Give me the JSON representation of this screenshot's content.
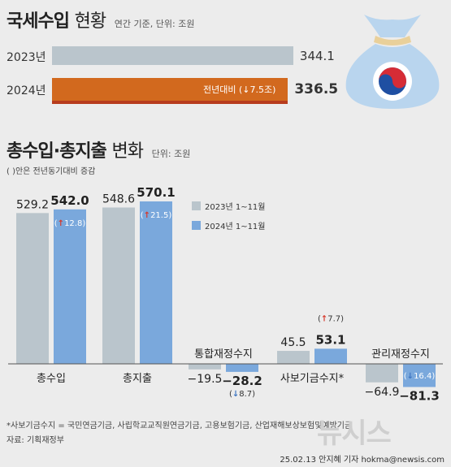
{
  "colors": {
    "bg": "#ececec",
    "bar2023": "#bac5cc",
    "bar2024_horizontal": "#d2691e",
    "bar2024_horizontal_base": "#b73c1d",
    "bar2024": "#7aa8dc",
    "up_arrow": "#d63a2d",
    "down_arrow": "#3f76c2",
    "bag": "#b9d5ee",
    "bag_tie": "#e9d09a",
    "emblem_red": "#d62c36",
    "emblem_blue": "#1f4fa2"
  },
  "section1": {
    "title_bold": "국세수입",
    "title_normal": "현황",
    "unit": "연간 기준, 단위: 조원"
  },
  "section2": {
    "title_bold": "총수입·총지출",
    "title_normal": "변화",
    "unit": "단위: 조원",
    "note": "( )안은 전년동기대비 증감",
    "legend": [
      "2023년 1~11월",
      "2024년 1~11월"
    ]
  },
  "chart_data": [
    {
      "type": "bar",
      "orientation": "horizontal",
      "categories": [
        "2023년",
        "2024년"
      ],
      "values": [
        344.1,
        336.5
      ],
      "value_labels": [
        "344.1",
        "336.5"
      ],
      "annotation": "전년대비 (↓7.5조)",
      "xlim": [
        0,
        350
      ]
    },
    {
      "type": "bar",
      "categories": [
        "총수입",
        "총지출",
        "통합재정수지",
        "사보기금수지*",
        "관리재정수지"
      ],
      "series": [
        {
          "name": "2023년 1~11월",
          "values": [
            529.2,
            548.6,
            -19.5,
            45.5,
            -64.9
          ],
          "labels": [
            "529.2",
            "548.6",
            "−19.5",
            "45.5",
            "−64.9"
          ]
        },
        {
          "name": "2024년 1~11월",
          "values": [
            542.0,
            570.1,
            -28.2,
            53.1,
            -81.3
          ],
          "labels": [
            "542.0",
            "570.1",
            "−28.2",
            "53.1",
            "−81.3"
          ]
        }
      ],
      "changes": [
        {
          "direction": "up",
          "value": "12.8"
        },
        {
          "direction": "up",
          "value": "21.5"
        },
        {
          "direction": "down",
          "value": "8.7"
        },
        {
          "direction": "up",
          "value": "7.7"
        },
        {
          "direction": "down",
          "value": "16.4"
        }
      ],
      "ylim": [
        -90,
        580
      ]
    }
  ],
  "footer": {
    "note": "*사보기금수지 = 국민연금기금, 사립학교교직원연금기금, 고용보험기금, 산업재해보상보험및예방기금",
    "source": "자료: 기획재정부",
    "credit": "25.02.13 안지혜 기자 hokma@newsis.com",
    "watermark": "뉴시스"
  }
}
